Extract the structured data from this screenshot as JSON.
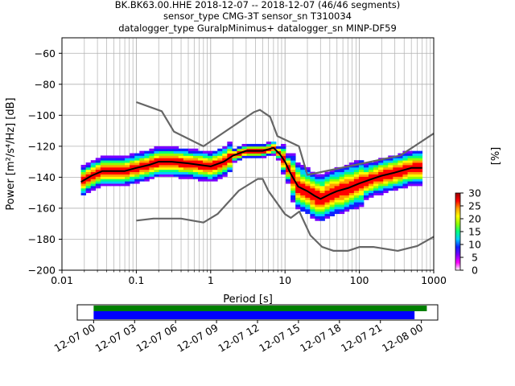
{
  "title_lines": [
    "BK.BK63.00.HHE   2018-12-07 -- 2018-12-07  (46/46 segments)",
    "sensor_type CMG-3T sensor_sn T310034",
    "datalogger_type GuralpMinimus+ datalogger_sn MINP-DF59"
  ],
  "chart_data": [
    {
      "type": "heatmap",
      "title": "BK.BK63.00.HHE   2018-12-07 -- 2018-12-07  (46/46 segments)",
      "xlabel": "Period [s]",
      "ylabel": "Power [m²/s⁴/Hz] [dB]",
      "xscale": "log",
      "xlim": [
        0.01,
        1000
      ],
      "ylim": [
        -200,
        -50
      ],
      "x_ticks": [
        0.01,
        0.1,
        1,
        10,
        100,
        1000
      ],
      "x_tick_labels": [
        "0.01",
        "0.1",
        "1",
        "10",
        "100",
        "1000"
      ],
      "y_ticks": [
        -200,
        -180,
        -160,
        -140,
        -120,
        -100,
        -80,
        -60
      ],
      "y_tick_labels": [
        "−200",
        "−180",
        "−160",
        "−140",
        "−120",
        "−100",
        "−80",
        "−60"
      ],
      "grid": true,
      "colorbar": {
        "label": "[%]",
        "range": [
          0,
          30
        ],
        "ticks": [
          0,
          5,
          10,
          15,
          20,
          25,
          30
        ],
        "tick_labels": [
          "0",
          "5",
          "10",
          "15",
          "20",
          "25",
          "30"
        ],
        "colors": [
          "#ffffff",
          "#ff00ff",
          "#7a00ff",
          "#1020ff",
          "#00ccff",
          "#00ff80",
          "#90ff00",
          "#ffff00",
          "#ffa000",
          "#ff0000",
          "#990000"
        ]
      },
      "series": [
        {
          "name": "",
          "role": "new_high_noise_model",
          "color": "#666666",
          "x": [
            0.1,
            0.22,
            0.32,
            0.8,
            3.8,
            4.6,
            6.3,
            7.9,
            15.4,
            20,
            354.8,
            10000
          ],
          "y": [
            -91.5,
            -97.4,
            -110.5,
            -120,
            -98,
            -96.5,
            -101,
            -113.5,
            -120,
            -138.5,
            -126,
            -80
          ]
        },
        {
          "name": "",
          "role": "new_low_noise_model",
          "color": "#666666",
          "x": [
            0.1,
            0.17,
            0.4,
            0.8,
            1.24,
            2.4,
            4.3,
            5,
            6,
            10,
            12,
            15.6,
            21.9,
            31.6,
            45,
            70,
            101,
            154,
            328,
            600,
            10000
          ],
          "y": [
            -168,
            -166.7,
            -166.7,
            -169.2,
            -163.7,
            -148.6,
            -141.1,
            -141.1,
            -149,
            -163.8,
            -166.2,
            -162.1,
            -177.5,
            -185,
            -187.5,
            -187.5,
            -185,
            -185,
            -187.5,
            -184.4,
            -151.5
          ]
        },
        {
          "name": "",
          "role": "mean_psd",
          "color": "#000000",
          "x": [
            0.018,
            0.025,
            0.035,
            0.05,
            0.07,
            0.1,
            0.15,
            0.2,
            0.3,
            0.5,
            0.7,
            1.0,
            1.5,
            2.0,
            3.0,
            5.0,
            7.0,
            8.5,
            10,
            12,
            15,
            20,
            25,
            30,
            40,
            50,
            70,
            100,
            150,
            200,
            300,
            500,
            700
          ],
          "y": [
            -143,
            -139,
            -136,
            -136,
            -136,
            -134,
            -132,
            -130,
            -130,
            -131,
            -132,
            -133,
            -130,
            -126,
            -123,
            -123,
            -121,
            -125,
            -130,
            -138,
            -146,
            -149,
            -152,
            -154,
            -151,
            -149,
            -147,
            -144,
            -141,
            -139,
            -137,
            -134,
            -134
          ]
        }
      ]
    },
    {
      "type": "bar",
      "role": "data_availability",
      "x_tick_labels": [
        "12-07 00",
        "12-07 03",
        "12-07 06",
        "12-07 09",
        "12-07 12",
        "12-07 15",
        "12-07 18",
        "12-07 21",
        "12-08 00"
      ],
      "x_hours": [
        0,
        3,
        6,
        9,
        12,
        15,
        18,
        21,
        24
      ],
      "xlim_hours": [
        -1.2,
        25.2
      ],
      "bars": [
        {
          "name": "",
          "color": "#008000",
          "start_hour": 0,
          "end_hour": 24.4
        },
        {
          "name": "",
          "color": "#0000ff",
          "start_hour": 0,
          "end_hour": 23.5
        }
      ]
    }
  ]
}
